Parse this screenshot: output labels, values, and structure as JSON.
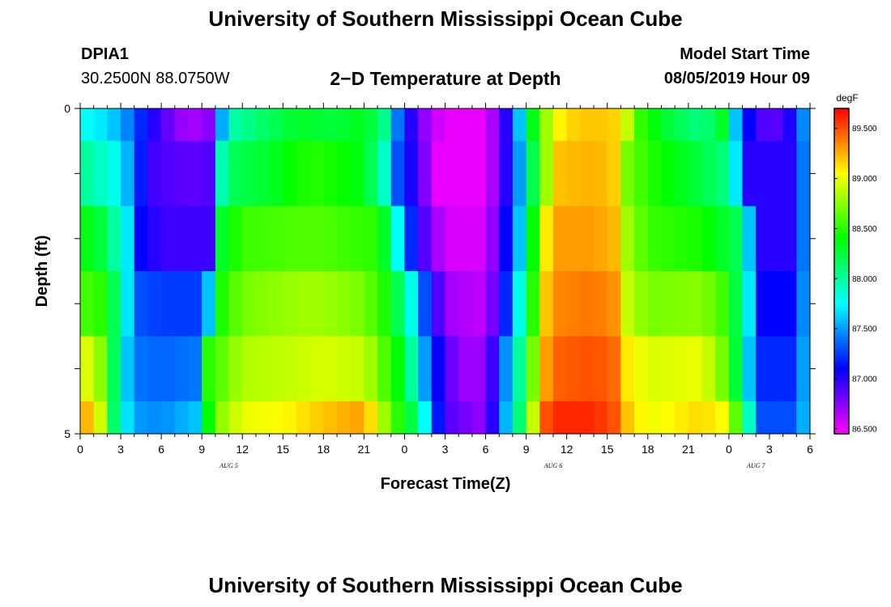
{
  "header": {
    "title": "University of Southern Mississippi Ocean Cube",
    "station": "DPIA1",
    "coords": "30.2500N 88.0750W",
    "plot_title": "2−D Temperature at Depth",
    "model_start_label": "Model Start Time",
    "model_start_value": "08/05/2019 Hour 09"
  },
  "footer": {
    "title": "University of Southern Mississippi Ocean Cube"
  },
  "chart_data": {
    "type": "heatmap",
    "xlabel": "Forecast Time(Z)",
    "ylabel": "Depth (ft)",
    "x_ticks": [
      "0",
      "3",
      "6",
      "9",
      "12",
      "15",
      "18",
      "21",
      "0",
      "3",
      "6",
      "9",
      "12",
      "15",
      "18",
      "21",
      "0",
      "3",
      "6"
    ],
    "date_labels": [
      {
        "label": "AUG 5",
        "at_hour": 11
      },
      {
        "label": "AUG 6",
        "at_hour": 35
      },
      {
        "label": "AUG 7",
        "at_hour": 50
      }
    ],
    "x_range_hours": [
      0,
      54
    ],
    "y_ticks": [
      "0",
      "5"
    ],
    "ylim": [
      0,
      5
    ],
    "colorbar": {
      "unit": "degF",
      "ticks": [
        "89.500",
        "89.000",
        "88.500",
        "88.000",
        "87.500",
        "87.000",
        "86.500"
      ],
      "min": 86.45,
      "max": 89.7
    },
    "depth_rows": [
      {
        "top": 0,
        "bottom": 0.5
      },
      {
        "top": 0.5,
        "bottom": 1.5
      },
      {
        "top": 1.5,
        "bottom": 2.5
      },
      {
        "top": 2.5,
        "bottom": 3.5
      },
      {
        "top": 3.5,
        "bottom": 4.5
      },
      {
        "top": 4.5,
        "bottom": 5
      }
    ],
    "temperature_keyframes": [
      [
        [
          0,
          87.8
        ],
        [
          1.5,
          87.7
        ],
        [
          3,
          87.55
        ],
        [
          4.5,
          87.2
        ],
        [
          6,
          86.9
        ],
        [
          8,
          86.65
        ],
        [
          9.5,
          86.75
        ],
        [
          10.2,
          87.3
        ],
        [
          11,
          87.95
        ],
        [
          13,
          88.1
        ],
        [
          16,
          88.3
        ],
        [
          19,
          88.25
        ],
        [
          21,
          88.35
        ],
        [
          22.5,
          88.05
        ],
        [
          23.5,
          87.4
        ],
        [
          25,
          86.8
        ],
        [
          27,
          86.5
        ],
        [
          30,
          86.5
        ],
        [
          31.5,
          87.0
        ],
        [
          32.5,
          87.6
        ],
        [
          33,
          88.1
        ],
        [
          34,
          88.6
        ],
        [
          35,
          89.0
        ],
        [
          36,
          89.15
        ],
        [
          38,
          89.2
        ],
        [
          40,
          89.15
        ],
        [
          40.5,
          88.9
        ],
        [
          41,
          88.6
        ],
        [
          43,
          88.3
        ],
        [
          46,
          88.05
        ],
        [
          47.5,
          88.3
        ],
        [
          48.5,
          87.6
        ],
        [
          49.5,
          87.1
        ],
        [
          51,
          86.8
        ],
        [
          53,
          87.1
        ],
        [
          54,
          87.8
        ]
      ],
      [
        [
          0,
          88.05
        ],
        [
          1.5,
          87.9
        ],
        [
          3,
          87.75
        ],
        [
          4.2,
          87.3
        ],
        [
          5,
          86.95
        ],
        [
          8,
          86.85
        ],
        [
          9.8,
          86.9
        ],
        [
          10.2,
          87.4
        ],
        [
          10.6,
          88.15
        ],
        [
          14,
          88.3
        ],
        [
          17,
          88.5
        ],
        [
          21,
          88.35
        ],
        [
          22.5,
          87.9
        ],
        [
          23.5,
          87.3
        ],
        [
          25,
          86.9
        ],
        [
          26.5,
          86.5
        ],
        [
          30,
          86.5
        ],
        [
          31.5,
          87.0
        ],
        [
          32.5,
          87.5
        ],
        [
          33.5,
          88.2
        ],
        [
          34.5,
          88.8
        ],
        [
          35,
          89.2
        ],
        [
          38,
          89.25
        ],
        [
          40,
          89.15
        ],
        [
          40.5,
          88.7
        ],
        [
          42,
          88.5
        ],
        [
          45,
          88.3
        ],
        [
          47.5,
          88.1
        ],
        [
          48.5,
          87.7
        ],
        [
          49.5,
          87.0
        ],
        [
          53,
          87.0
        ],
        [
          54,
          87.8
        ]
      ],
      [
        [
          0,
          88.4
        ],
        [
          1.5,
          88.25
        ],
        [
          2.5,
          88.0
        ],
        [
          3.5,
          87.7
        ],
        [
          4.5,
          87.1
        ],
        [
          6,
          86.95
        ],
        [
          9.5,
          86.95
        ],
        [
          10,
          87.6
        ],
        [
          10.5,
          88.3
        ],
        [
          12,
          88.55
        ],
        [
          16,
          88.6
        ],
        [
          18,
          88.6
        ],
        [
          22,
          88.5
        ],
        [
          23,
          88.1
        ],
        [
          24,
          87.4
        ],
        [
          25,
          87.0
        ],
        [
          27,
          86.55
        ],
        [
          30,
          86.55
        ],
        [
          31.5,
          87.1
        ],
        [
          32.5,
          87.6
        ],
        [
          33.5,
          88.4
        ],
        [
          34.5,
          89.1
        ],
        [
          35,
          89.3
        ],
        [
          38,
          89.3
        ],
        [
          40,
          89.2
        ],
        [
          40.5,
          88.8
        ],
        [
          42,
          88.55
        ],
        [
          46,
          88.45
        ],
        [
          48.5,
          88.2
        ],
        [
          49.5,
          87.6
        ],
        [
          50.5,
          87.0
        ],
        [
          53,
          87.0
        ],
        [
          54,
          87.8
        ]
      ],
      [
        [
          0,
          88.6
        ],
        [
          1.5,
          88.5
        ],
        [
          2.5,
          88.2
        ],
        [
          3.2,
          87.8
        ],
        [
          4.5,
          87.3
        ],
        [
          6,
          87.25
        ],
        [
          9,
          87.25
        ],
        [
          9.5,
          87.6
        ],
        [
          10,
          88.4
        ],
        [
          12,
          88.7
        ],
        [
          16,
          88.8
        ],
        [
          18,
          88.8
        ],
        [
          21,
          88.7
        ],
        [
          23,
          88.4
        ],
        [
          24.5,
          87.8
        ],
        [
          25.5,
          87.3
        ],
        [
          27,
          86.7
        ],
        [
          30,
          86.6
        ],
        [
          31.5,
          87.2
        ],
        [
          32.5,
          87.8
        ],
        [
          33.5,
          88.5
        ],
        [
          34.5,
          89.2
        ],
        [
          35,
          89.35
        ],
        [
          38,
          89.4
        ],
        [
          40,
          89.3
        ],
        [
          40.5,
          88.9
        ],
        [
          42,
          88.7
        ],
        [
          46,
          88.75
        ],
        [
          48,
          88.5
        ],
        [
          49.5,
          87.7
        ],
        [
          50.5,
          87.1
        ],
        [
          53,
          87.1
        ],
        [
          54,
          87.8
        ]
      ],
      [
        [
          0,
          89.0
        ],
        [
          1.2,
          88.9
        ],
        [
          2.2,
          88.4
        ],
        [
          3,
          87.8
        ],
        [
          4,
          87.4
        ],
        [
          6,
          87.35
        ],
        [
          8.5,
          87.4
        ],
        [
          9,
          87.8
        ],
        [
          9.5,
          88.5
        ],
        [
          12,
          88.85
        ],
        [
          16,
          88.9
        ],
        [
          18,
          88.95
        ],
        [
          21,
          88.9
        ],
        [
          22.5,
          88.6
        ],
        [
          23.5,
          88.4
        ],
        [
          25,
          87.8
        ],
        [
          26,
          87.2
        ],
        [
          28,
          86.7
        ],
        [
          30,
          86.7
        ],
        [
          31,
          87.2
        ],
        [
          32.5,
          88.0
        ],
        [
          33.5,
          88.7
        ],
        [
          34.5,
          89.3
        ],
        [
          35,
          89.45
        ],
        [
          38,
          89.5
        ],
        [
          40,
          89.4
        ],
        [
          40.5,
          89.1
        ],
        [
          42,
          88.95
        ],
        [
          46,
          89.0
        ],
        [
          48,
          88.6
        ],
        [
          49.5,
          87.6
        ],
        [
          50.5,
          87.2
        ],
        [
          53,
          87.2
        ],
        [
          54,
          87.8
        ]
      ],
      [
        [
          0,
          89.25
        ],
        [
          1.2,
          89.2
        ],
        [
          2.2,
          88.3
        ],
        [
          3,
          87.85
        ],
        [
          4,
          87.5
        ],
        [
          6,
          87.45
        ],
        [
          8.5,
          87.6
        ],
        [
          9,
          88.1
        ],
        [
          10,
          88.7
        ],
        [
          12,
          89.0
        ],
        [
          15,
          89.05
        ],
        [
          18,
          89.2
        ],
        [
          21,
          89.3
        ],
        [
          22.5,
          88.8
        ],
        [
          23.5,
          88.5
        ],
        [
          25,
          88.1
        ],
        [
          26,
          87.4
        ],
        [
          27,
          86.9
        ],
        [
          30,
          86.7
        ],
        [
          31,
          87.3
        ],
        [
          32.5,
          88.1
        ],
        [
          33.5,
          88.9
        ],
        [
          34.5,
          89.5
        ],
        [
          35,
          89.6
        ],
        [
          38,
          89.6
        ],
        [
          40,
          89.45
        ],
        [
          40.5,
          89.2
        ],
        [
          42,
          89.0
        ],
        [
          46,
          89.15
        ],
        [
          48,
          89.0
        ],
        [
          49.5,
          87.9
        ],
        [
          50.5,
          87.3
        ],
        [
          53,
          87.3
        ],
        [
          54,
          87.8
        ]
      ]
    ]
  }
}
